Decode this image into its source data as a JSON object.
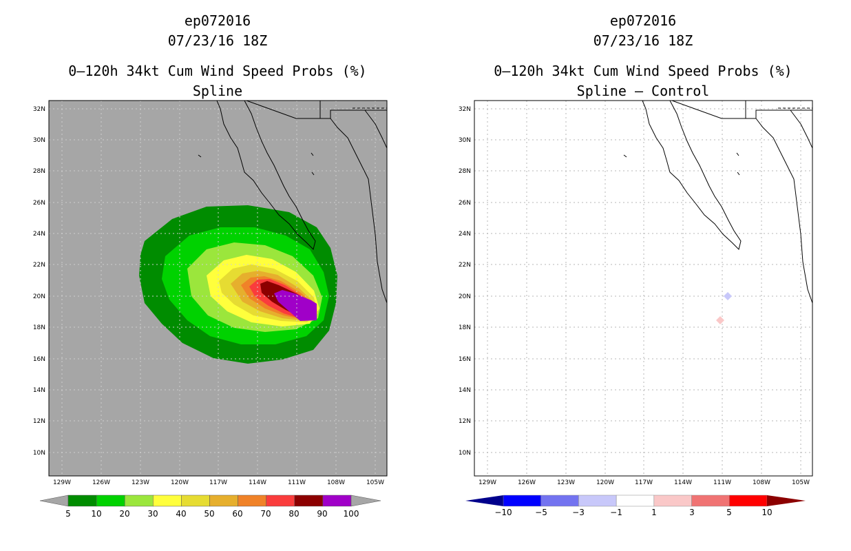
{
  "left_panel": {
    "storm_id": "ep072016",
    "datetime": "07/23/16 18Z",
    "title": "0–120h 34kt Cum Wind Speed Probs (%)",
    "subtitle": "Spline",
    "colorbar": {
      "labels": [
        "5",
        "10",
        "20",
        "30",
        "40",
        "50",
        "60",
        "70",
        "80",
        "90",
        "100"
      ],
      "colors": [
        "#008c00",
        "#00d200",
        "#9be63c",
        "#ffff3c",
        "#e6dc32",
        "#e6af2d",
        "#f08228",
        "#fa3c3c",
        "#8c0000",
        "#a000c8"
      ],
      "under_color": "#a6a6a6",
      "over_color": "#a6a6a6"
    }
  },
  "right_panel": {
    "storm_id": "ep072016",
    "datetime": "07/23/16 18Z",
    "title": "0–120h 34kt Cum Wind Speed Probs (%)",
    "subtitle": "Spline – Control",
    "colorbar": {
      "labels": [
        "−10",
        "−5",
        "−3",
        "−1",
        "1",
        "3",
        "5",
        "10"
      ],
      "colors": [
        "#0000ff",
        "#7373f0",
        "#c8c8fa",
        "#ffffff",
        "#fac8c8",
        "#f07373",
        "#ff0000"
      ],
      "under_color": "#00008c",
      "over_color": "#8c0000"
    }
  },
  "axes": {
    "lat_labels": [
      "32N",
      "30N",
      "28N",
      "26N",
      "24N",
      "22N",
      "20N",
      "18N",
      "16N",
      "14N",
      "12N",
      "10N"
    ],
    "lon_labels": [
      "129W",
      "126W",
      "123W",
      "120W",
      "117W",
      "114W",
      "111W",
      "108W",
      "105W"
    ]
  },
  "map_colors": {
    "ocean_left": "#a6a6a6",
    "background_right": "#ffffff",
    "coastline": "#000000"
  }
}
